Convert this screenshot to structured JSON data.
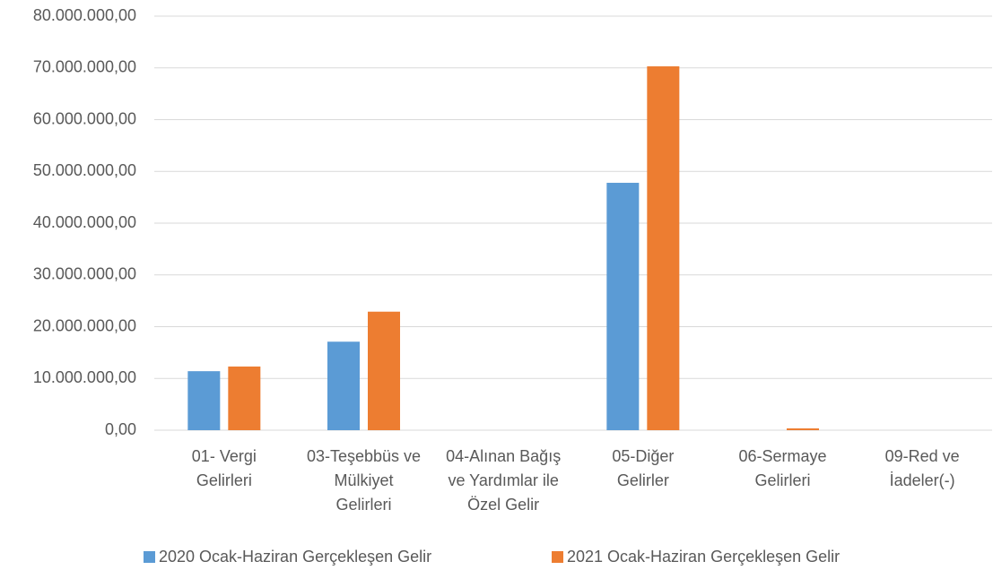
{
  "chart_data": {
    "type": "bar",
    "categories": [
      "01- Vergi\nGelirleri",
      "03-Teşebbüs ve\nMülkiyet\nGelirleri",
      "04-Alınan Bağış\nve Yardımlar ile\nÖzel Gelir",
      "05-Diğer\nGelirler",
      "06-Sermaye\nGelirleri",
      "09-Red ve\nİadeler(-)"
    ],
    "series": [
      {
        "name": "2020  Ocak-Haziran Gerçekleşen Gelir",
        "color": "#5b9bd5",
        "values": [
          11400000,
          17100000,
          0,
          47800000,
          0,
          0
        ]
      },
      {
        "name": "2021 Ocak-Haziran Gerçekleşen Gelir",
        "color": "#ed7d31",
        "values": [
          12300000,
          22900000,
          0,
          70300000,
          350000,
          0
        ]
      }
    ],
    "ylim": [
      0,
      80000000
    ],
    "yticks": [
      {
        "value": 0,
        "label": "0,00"
      },
      {
        "value": 10000000,
        "label": "10.000.000,00"
      },
      {
        "value": 20000000,
        "label": "20.000.000,00"
      },
      {
        "value": 30000000,
        "label": "30.000.000,00"
      },
      {
        "value": 40000000,
        "label": "40.000.000,00"
      },
      {
        "value": 50000000,
        "label": "50.000.000,00"
      },
      {
        "value": 60000000,
        "label": "60.000.000,00"
      },
      {
        "value": 70000000,
        "label": "70.000.000,00"
      },
      {
        "value": 80000000,
        "label": "80.000.000,00"
      }
    ],
    "grid": true,
    "legend": "bottom"
  }
}
